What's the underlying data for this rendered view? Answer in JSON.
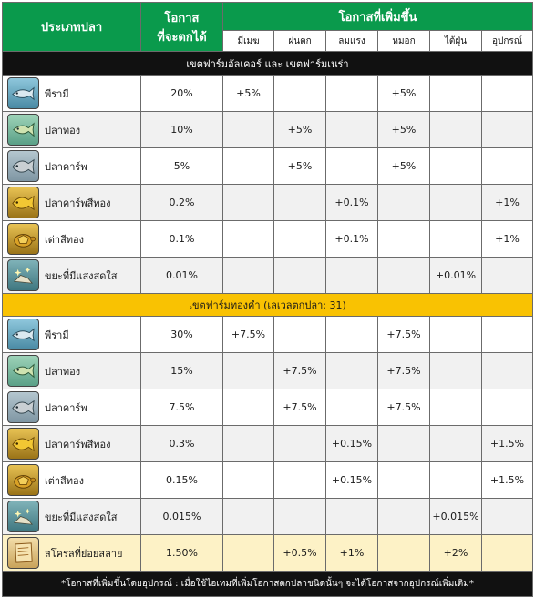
{
  "headers": {
    "fish_type": "ประเภทปลา",
    "chance_line1": "โอกาส",
    "chance_line2": "ที่จะตกได้",
    "increase": "โอกาสที่เพิ่มขึ้น",
    "weather": [
      "มีเมฆ",
      "ฝนตก",
      "ลมแรง",
      "หมอก",
      "ไต้ฝุ่น",
      "อุปกรณ์"
    ]
  },
  "sections": [
    {
      "title": "เขตฟาร์มอัลเคอร์ และ เขตฟาร์มเนร่า",
      "rows": [
        {
          "icon": "sardine-icon",
          "icon_style": "blue",
          "name": "พีรามี",
          "chance": "20%",
          "cells": [
            "+5%",
            "",
            "",
            "+5%",
            "",
            ""
          ]
        },
        {
          "icon": "goldfish-icon",
          "icon_style": "green",
          "name": "ปลาทอง",
          "chance": "10%",
          "cells": [
            "",
            "+5%",
            "",
            "+5%",
            "",
            ""
          ]
        },
        {
          "icon": "carp-icon",
          "icon_style": "gray",
          "name": "ปลาคาร์พ",
          "chance": "5%",
          "cells": [
            "",
            "+5%",
            "",
            "+5%",
            "",
            ""
          ]
        },
        {
          "icon": "golden-carp-icon",
          "icon_style": "gold",
          "name": "ปลาคาร์พสีทอง",
          "chance": "0.2%",
          "cells": [
            "",
            "",
            "+0.1%",
            "",
            "",
            "+1%"
          ]
        },
        {
          "icon": "golden-turtle-icon",
          "icon_style": "gold",
          "name": "เต่าสีทอง",
          "chance": "0.1%",
          "cells": [
            "",
            "",
            "+0.1%",
            "",
            "",
            "+1%"
          ]
        },
        {
          "icon": "sparkling-junk-icon",
          "icon_style": "teal",
          "name": "ขยะที่มีแสงสดใส",
          "chance": "0.01%",
          "cells": [
            "",
            "",
            "",
            "",
            "+0.01%",
            ""
          ]
        }
      ]
    },
    {
      "title": "เขตฟาร์มทองคำ (เลเวลตกปลา: 31)",
      "rows": [
        {
          "icon": "sardine-icon",
          "icon_style": "blue",
          "name": "พีรามี",
          "chance": "30%",
          "cells": [
            "+7.5%",
            "",
            "",
            "+7.5%",
            "",
            ""
          ]
        },
        {
          "icon": "goldfish-icon",
          "icon_style": "green",
          "name": "ปลาทอง",
          "chance": "15%",
          "cells": [
            "",
            "+7.5%",
            "",
            "+7.5%",
            "",
            ""
          ]
        },
        {
          "icon": "carp-icon",
          "icon_style": "gray",
          "name": "ปลาคาร์พ",
          "chance": "7.5%",
          "cells": [
            "",
            "+7.5%",
            "",
            "+7.5%",
            "",
            ""
          ]
        },
        {
          "icon": "golden-carp-icon",
          "icon_style": "gold",
          "name": "ปลาคาร์พสีทอง",
          "chance": "0.3%",
          "cells": [
            "",
            "",
            "+0.15%",
            "",
            "",
            "+1.5%"
          ]
        },
        {
          "icon": "golden-turtle-icon",
          "icon_style": "gold",
          "name": "เต่าสีทอง",
          "chance": "0.15%",
          "cells": [
            "",
            "",
            "+0.15%",
            "",
            "",
            "+1.5%"
          ]
        },
        {
          "icon": "sparkling-junk-icon",
          "icon_style": "teal",
          "name": "ขยะที่มีแสงสดใส",
          "chance": "0.015%",
          "cells": [
            "",
            "",
            "",
            "",
            "+0.015%",
            ""
          ]
        },
        {
          "icon": "decayed-scroll-icon",
          "icon_style": "paper",
          "name": "สโครลที่ย่อยสลาย",
          "chance": "1.50%",
          "cells": [
            "",
            "+0.5%",
            "+1%",
            "",
            "+2%",
            ""
          ],
          "highlight": true
        }
      ]
    }
  ],
  "footer": "*โอกาสที่เพิ่มขึ้นโดยอุปกรณ์ : เมื่อใช้ไอเทมที่เพิ่มโอกาสตกปลาชนิดนั้นๆ จะได้โอกาสจากอุปกรณ์เพิ่มเติม*"
}
